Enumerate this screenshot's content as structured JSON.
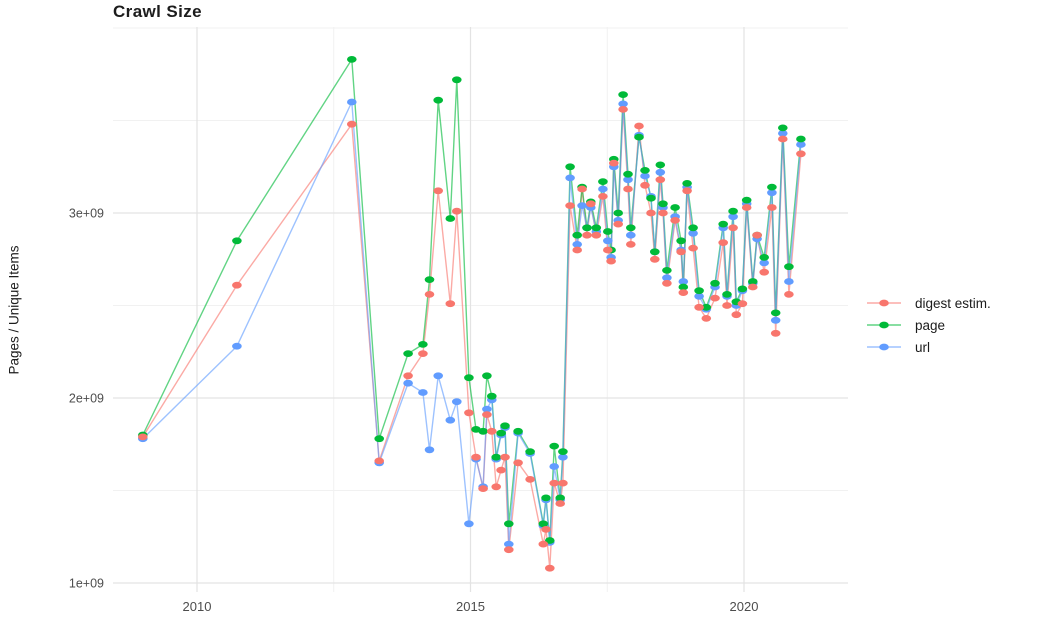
{
  "chart": {
    "title": "Crawl Size",
    "y_axis_label": "Pages / Unique Items"
  },
  "legend": {
    "items": [
      {
        "label": "digest estim.",
        "color": "#F8766D"
      },
      {
        "label": "page",
        "color": "#00BA38"
      },
      {
        "label": "url",
        "color": "#619CFF"
      }
    ]
  },
  "colors": {
    "digest": "#F8766D",
    "page": "#00BA38",
    "url": "#619CFF",
    "grid_major": "#E3E3E3",
    "grid_minor": "#F1F1F1",
    "axis_text": "#4D4D4D",
    "text": "#1C1C1C",
    "background": "#FFFFFF"
  },
  "chart_data": {
    "type": "line",
    "title": "Crawl Size",
    "xlabel": "",
    "ylabel": "Pages / Unique Items",
    "legend_position": "right",
    "grid": "major+minor",
    "y_values_unit": "1e9 (billions)",
    "xlim": [
      2008.45,
      2021.9
    ],
    "ylim_e9": [
      0.93,
      4.0
    ],
    "x_major_ticks": [
      {
        "value": 2010,
        "label": "2010"
      },
      {
        "value": 2015,
        "label": "2015"
      },
      {
        "value": 2020,
        "label": "2020"
      }
    ],
    "x_minor_ticks": [
      2012.5,
      2017.5
    ],
    "y_major_ticks": [
      {
        "value_e9": 1,
        "label": "1e+09"
      },
      {
        "value_e9": 2,
        "label": "2e+09"
      },
      {
        "value_e9": 3,
        "label": "3e+09"
      }
    ],
    "y_minor_ticks_e9": [
      1.5,
      2.5,
      3.5,
      4.0
    ],
    "x": [
      2009.01,
      2010.73,
      2012.83,
      2013.33,
      2013.86,
      2014.13,
      2014.25,
      2014.41,
      2014.63,
      2014.75,
      2014.97,
      2015.1,
      2015.23,
      2015.3,
      2015.39,
      2015.47,
      2015.56,
      2015.63,
      2015.7,
      2015.87,
      2016.09,
      2016.33,
      2016.38,
      2016.45,
      2016.53,
      2016.64,
      2016.69,
      2016.82,
      2016.95,
      2017.04,
      2017.13,
      2017.2,
      2017.3,
      2017.42,
      2017.51,
      2017.57,
      2017.62,
      2017.7,
      2017.79,
      2017.88,
      2017.93,
      2018.08,
      2018.19,
      2018.3,
      2018.37,
      2018.47,
      2018.52,
      2018.59,
      2018.74,
      2018.85,
      2018.89,
      2018.96,
      2019.07,
      2019.18,
      2019.31,
      2019.47,
      2019.62,
      2019.69,
      2019.8,
      2019.86,
      2019.97,
      2020.05,
      2020.16,
      2020.24,
      2020.37,
      2020.51,
      2020.58,
      2020.71,
      2020.82,
      2021.04
    ],
    "series": [
      {
        "name": "digest estim.",
        "color": "#F8766D",
        "values_e9": [
          1.79,
          2.61,
          3.48,
          1.66,
          2.12,
          2.24,
          2.56,
          3.12,
          2.51,
          3.01,
          1.92,
          1.68,
          1.51,
          1.91,
          1.82,
          1.52,
          1.61,
          1.68,
          1.18,
          1.65,
          1.56,
          1.21,
          1.29,
          1.08,
          1.54,
          1.43,
          1.54,
          3.04,
          2.8,
          3.13,
          2.88,
          3.05,
          2.88,
          3.09,
          2.8,
          2.74,
          3.27,
          2.94,
          3.56,
          3.13,
          2.83,
          3.47,
          3.15,
          3.0,
          2.75,
          3.18,
          3.0,
          2.62,
          2.96,
          2.79,
          2.57,
          3.12,
          2.81,
          2.49,
          2.43,
          2.54,
          2.84,
          2.5,
          2.92,
          2.45,
          2.51,
          3.03,
          2.6,
          2.88,
          2.68,
          3.03,
          2.35,
          3.4,
          2.56,
          3.32
        ]
      },
      {
        "name": "page",
        "color": "#00BA38",
        "values_e9": [
          1.8,
          2.85,
          3.83,
          1.78,
          2.24,
          2.29,
          2.64,
          3.61,
          2.97,
          3.72,
          2.11,
          1.83,
          1.82,
          2.12,
          2.01,
          1.68,
          1.81,
          1.85,
          1.32,
          1.82,
          1.71,
          1.32,
          1.46,
          1.23,
          1.74,
          1.46,
          1.71,
          3.25,
          2.88,
          3.14,
          2.92,
          3.06,
          2.92,
          3.17,
          2.9,
          2.8,
          3.29,
          3.0,
          3.64,
          3.21,
          2.92,
          3.41,
          3.23,
          3.08,
          2.79,
          3.26,
          3.05,
          2.69,
          3.03,
          2.85,
          2.6,
          3.16,
          2.92,
          2.58,
          2.49,
          2.62,
          2.94,
          2.56,
          3.01,
          2.52,
          2.59,
          3.07,
          2.63,
          2.88,
          2.76,
          3.14,
          2.46,
          3.46,
          2.71,
          3.4
        ]
      },
      {
        "name": "url",
        "color": "#619CFF",
        "values_e9": [
          1.78,
          2.28,
          3.6,
          1.65,
          2.08,
          2.03,
          1.72,
          2.12,
          1.88,
          1.98,
          1.32,
          1.67,
          1.52,
          1.94,
          1.99,
          1.67,
          1.8,
          1.84,
          1.21,
          1.81,
          1.7,
          1.31,
          1.45,
          1.22,
          1.63,
          1.45,
          1.68,
          3.19,
          2.83,
          3.04,
          2.92,
          3.03,
          2.9,
          3.13,
          2.85,
          2.76,
          3.25,
          2.96,
          3.59,
          3.18,
          2.88,
          3.42,
          3.2,
          3.09,
          2.79,
          3.22,
          3.03,
          2.65,
          2.98,
          2.8,
          2.63,
          3.14,
          2.89,
          2.55,
          2.48,
          2.6,
          2.92,
          2.55,
          2.98,
          2.5,
          2.58,
          3.05,
          2.62,
          2.86,
          2.73,
          3.11,
          2.42,
          3.43,
          2.63,
          3.37
        ]
      }
    ]
  }
}
